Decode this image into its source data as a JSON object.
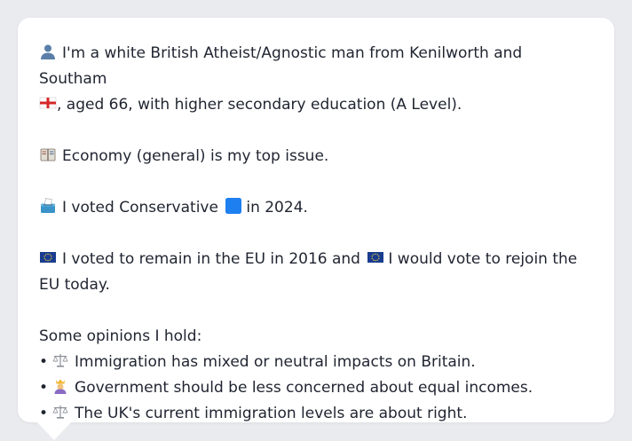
{
  "profile": {
    "intro_text": "I'm a white British Atheist/Agnostic man from Kenilworth and Southam",
    "intro_text_2": ", aged 66, with higher secondary education (A Level).",
    "top_issue": "Economy (general) is my top issue.",
    "vote_text_before": "I voted Conservative",
    "vote_text_after": "in 2024.",
    "eu_part1": "I voted to remain in the EU in 2016 and",
    "eu_part2": "I would vote to rejoin the EU today.",
    "opinions_heading": "Some opinions I hold:",
    "opinions": [
      {
        "icon": "scales-icon",
        "text": "Immigration has mixed or neutral impacts on Britain."
      },
      {
        "icon": "person-crown-icon",
        "text": "Government should be less concerned about equal incomes."
      },
      {
        "icon": "scales-icon",
        "text": "The UK's current immigration levels are about right."
      }
    ],
    "bullet_char": "•"
  },
  "icons": {
    "person": "person-icon",
    "flag": "england-flag-icon",
    "ledger": "ledger-icon",
    "ballot": "ballot-box-icon",
    "party": "blue-square-icon",
    "eu": "eu-flag-icon"
  },
  "colors": {
    "background": "#e9ebee",
    "card": "#ffffff",
    "text": "#1f2430",
    "conservative_blue": "#1e7ff0",
    "eu_blue": "#1a3c8f",
    "eu_star": "#f4d03f",
    "england_red": "#d62828"
  }
}
